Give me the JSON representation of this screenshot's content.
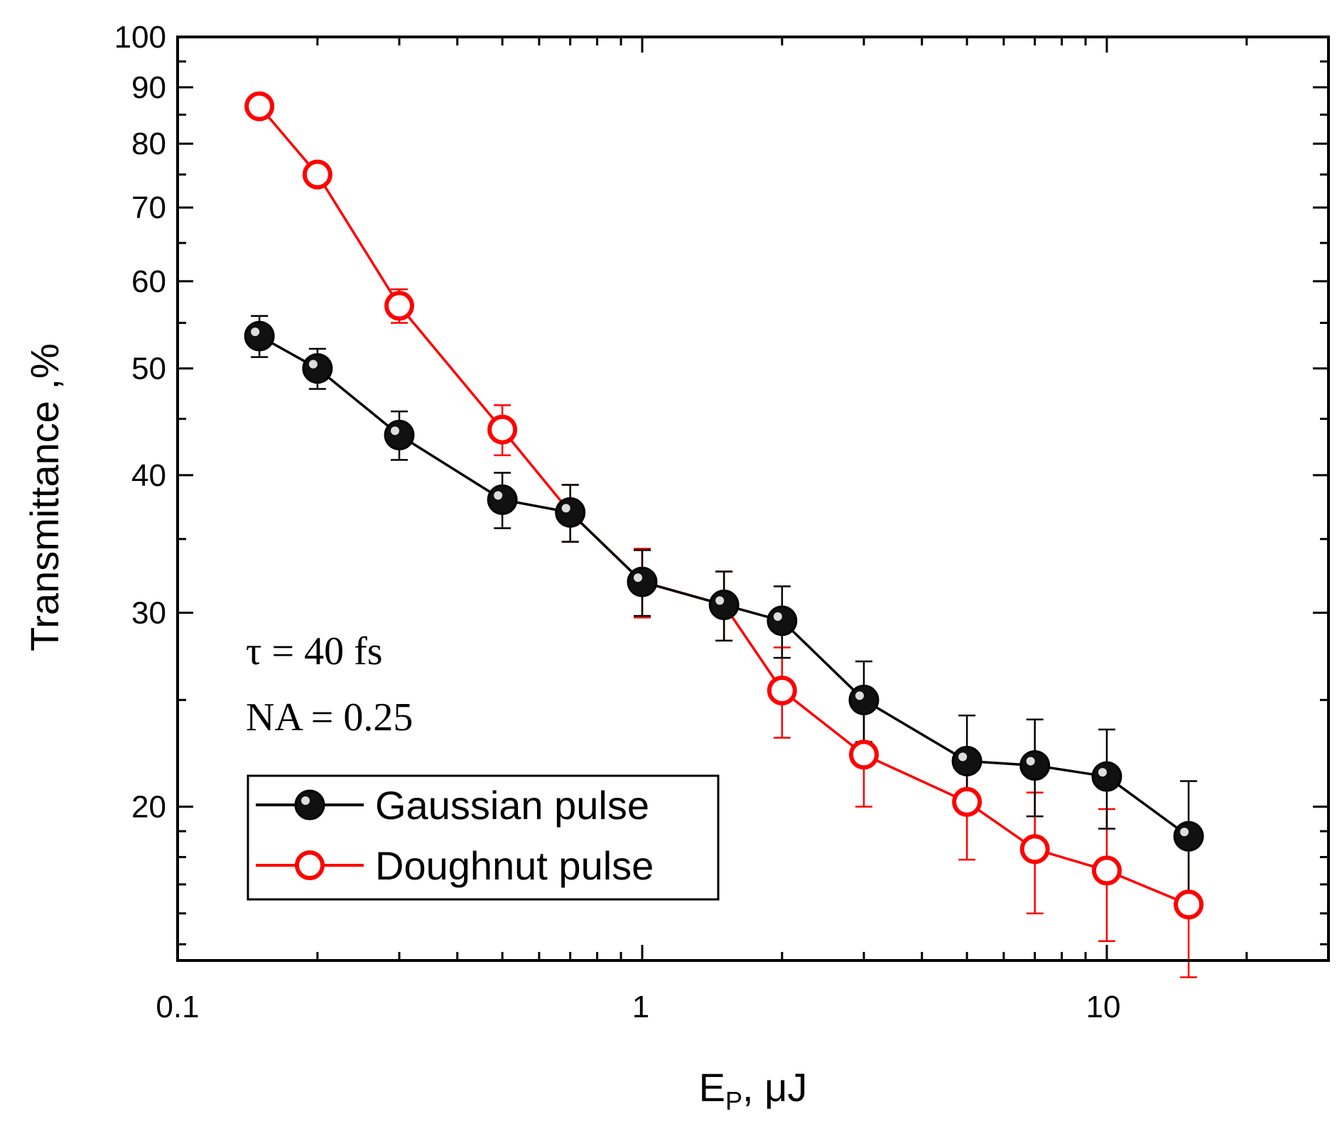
{
  "chart_data": {
    "type": "line",
    "xscale": "log",
    "yscale": "log",
    "xlabel": "E",
    "xlabel_sub": "P",
    "xlabel_unit": ", μJ",
    "ylabel": "Transmittance ,%",
    "xlim": [
      0.1,
      30
    ],
    "ylim": [
      14.5,
      100
    ],
    "x_ticks": [
      0.1,
      1,
      10
    ],
    "x_tick_labels": [
      "0.1",
      "1",
      "10"
    ],
    "y_ticks": [
      20,
      30,
      40,
      50,
      60,
      70,
      80,
      90,
      100
    ],
    "y_tick_labels": [
      "20",
      "30",
      "40",
      "50",
      "60",
      "70",
      "80",
      "90",
      "100"
    ],
    "annotations": [
      "τ = 40 fs",
      "NA = 0.25"
    ],
    "legend_position": "bottom-left",
    "series": [
      {
        "name": "Gaussian pulse",
        "color": "#000000",
        "marker": "filled-circle",
        "x": [
          0.15,
          0.2,
          0.3,
          0.5,
          0.7,
          1,
          1.5,
          2,
          3,
          5,
          7,
          10,
          15
        ],
        "y": [
          53.5,
          50,
          43.5,
          38,
          37,
          32,
          30.5,
          29.5,
          25,
          22,
          21.8,
          21.3,
          18.8
        ],
        "err": [
          2.3,
          2.1,
          2.2,
          2.2,
          2.2,
          2.2,
          2.2,
          2.2,
          2.1,
          2.2,
          2.2,
          2.2,
          2.3
        ]
      },
      {
        "name": "Doughnut pulse",
        "color": "#ff0000",
        "marker": "open-circle",
        "x": [
          0.15,
          0.2,
          0.3,
          0.5,
          0.7,
          1,
          1.5,
          2,
          3,
          5,
          7,
          10,
          15
        ],
        "y": [
          86.5,
          75,
          57,
          44,
          37,
          32,
          30.5,
          25.5,
          22.3,
          20.2,
          18.3,
          17.5,
          16.3
        ],
        "err": [
          0.8,
          1.3,
          2.0,
          2.3,
          2.2,
          2.3,
          2.2,
          2.4,
          2.3,
          2.3,
          2.3,
          2.4,
          2.3
        ]
      }
    ]
  }
}
